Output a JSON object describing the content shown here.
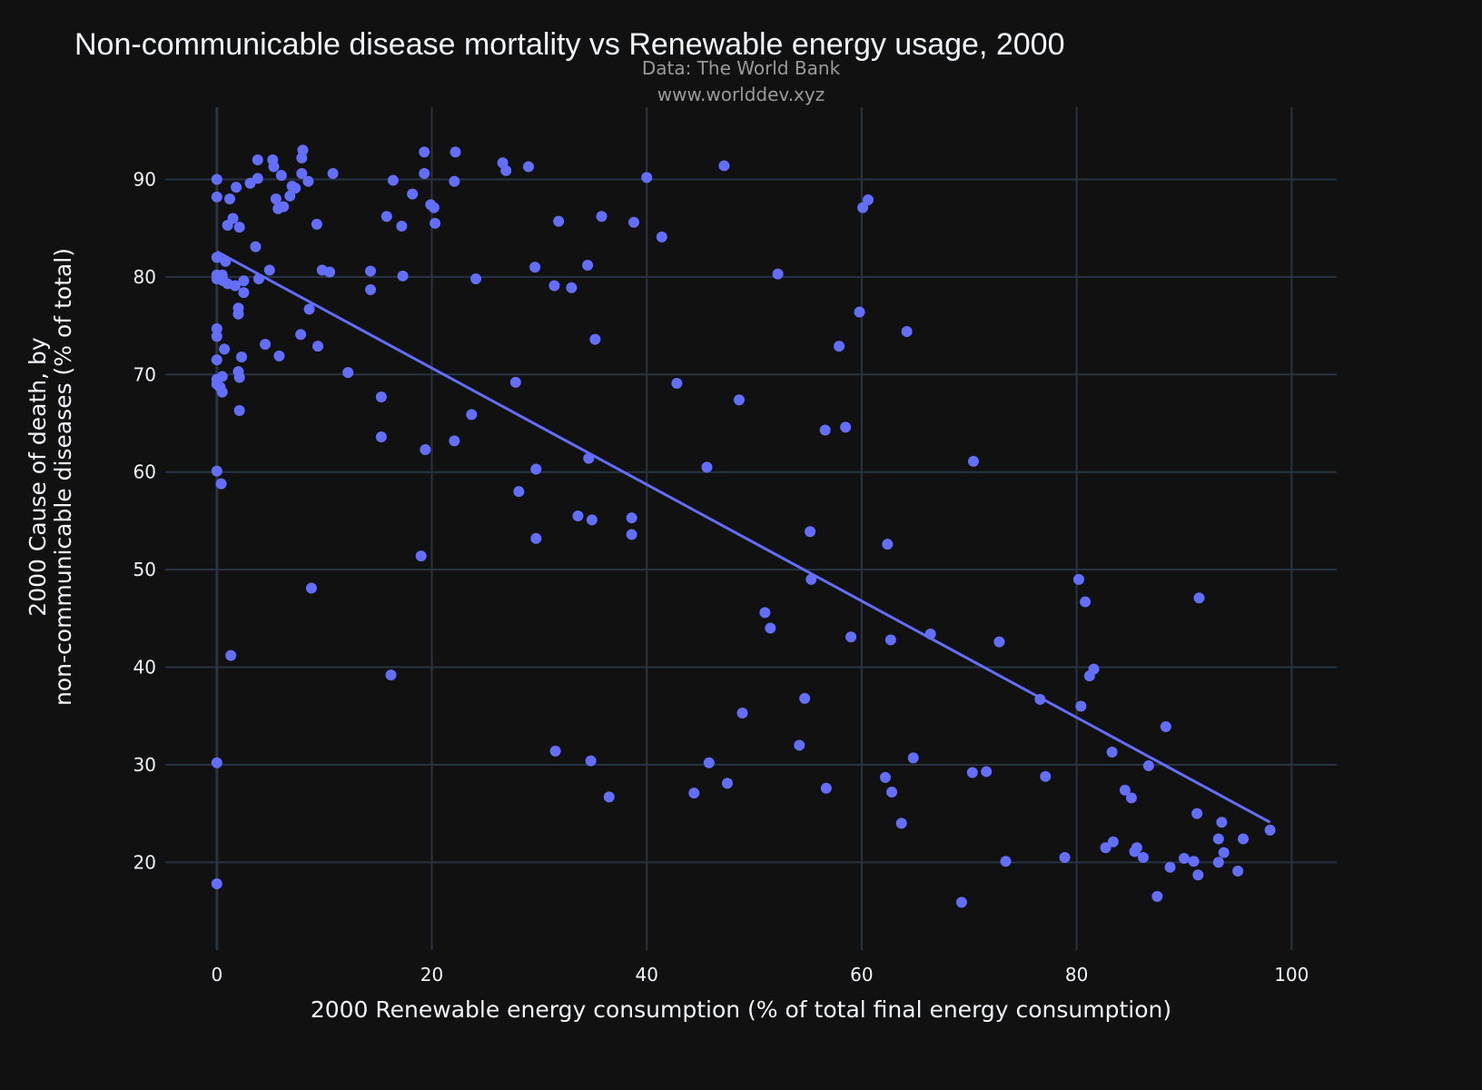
{
  "chart_data": {
    "type": "scatter",
    "title": "Non-communicable disease mortality vs Renewable energy usage, 2000",
    "subtitle_lines": [
      "Data: The World Bank",
      "www.worlddev.xyz"
    ],
    "xlabel": "2000 Renewable energy consumption (% of total final energy consumption)",
    "ylabel_lines": [
      "2000 Cause of death, by",
      "non-communicable diseases (% of total)"
    ],
    "xlim": [
      -4.8,
      104.2
    ],
    "ylim": [
      11.0,
      97.4
    ],
    "xticks": [
      0,
      20,
      40,
      60,
      80,
      100
    ],
    "yticks": [
      20,
      30,
      40,
      50,
      60,
      70,
      80,
      90
    ],
    "grid": true,
    "background_color": "#111111",
    "grid_color": "#283442",
    "marker_color": "#636efa",
    "trendline": {
      "x": [
        0,
        98.0
      ],
      "y": [
        82.6,
        24.1
      ]
    },
    "points": [
      [
        0,
        90.0
      ],
      [
        0,
        88.2
      ],
      [
        0,
        82.0
      ],
      [
        0,
        80.2
      ],
      [
        0,
        79.8
      ],
      [
        0,
        74.7
      ],
      [
        0,
        73.9
      ],
      [
        0,
        71.5
      ],
      [
        0,
        69.5
      ],
      [
        0,
        69.0
      ],
      [
        0,
        60.1
      ],
      [
        0,
        30.2
      ],
      [
        0,
        17.8
      ],
      [
        0.3,
        68.7
      ],
      [
        0.4,
        58.8
      ],
      [
        0.5,
        69.8
      ],
      [
        0.5,
        68.2
      ],
      [
        0.5,
        80.2
      ],
      [
        0.6,
        79.6
      ],
      [
        0.7,
        72.6
      ],
      [
        0.8,
        81.6
      ],
      [
        1.0,
        85.3
      ],
      [
        1.0,
        79.3
      ],
      [
        1.2,
        88.0
      ],
      [
        1.3,
        41.2
      ],
      [
        1.5,
        86.0
      ],
      [
        1.7,
        79.1
      ],
      [
        1.8,
        89.2
      ],
      [
        2.0,
        76.8
      ],
      [
        2.0,
        76.2
      ],
      [
        2.0,
        70.3
      ],
      [
        2.1,
        69.7
      ],
      [
        2.1,
        85.1
      ],
      [
        2.1,
        66.3
      ],
      [
        2.3,
        71.8
      ],
      [
        2.5,
        79.6
      ],
      [
        2.5,
        78.4
      ],
      [
        3.1,
        89.6
      ],
      [
        3.6,
        83.1
      ],
      [
        3.8,
        92.0
      ],
      [
        3.8,
        90.1
      ],
      [
        3.9,
        79.8
      ],
      [
        4.5,
        73.1
      ],
      [
        4.9,
        80.7
      ],
      [
        5.2,
        92.0
      ],
      [
        5.3,
        91.3
      ],
      [
        5.5,
        88.0
      ],
      [
        5.7,
        87.0
      ],
      [
        5.8,
        71.9
      ],
      [
        6.0,
        90.4
      ],
      [
        6.2,
        87.2
      ],
      [
        6.8,
        88.3
      ],
      [
        7.0,
        89.3
      ],
      [
        7.3,
        89.1
      ],
      [
        7.8,
        74.1
      ],
      [
        7.9,
        90.6
      ],
      [
        7.9,
        92.2
      ],
      [
        8.0,
        93.0
      ],
      [
        8.5,
        89.8
      ],
      [
        8.6,
        76.7
      ],
      [
        8.8,
        48.1
      ],
      [
        9.3,
        85.4
      ],
      [
        9.4,
        72.9
      ],
      [
        9.8,
        80.7
      ],
      [
        10.5,
        80.5
      ],
      [
        10.8,
        90.6
      ],
      [
        12.2,
        70.2
      ],
      [
        14.3,
        80.6
      ],
      [
        14.3,
        78.7
      ],
      [
        15.3,
        67.7
      ],
      [
        15.3,
        63.6
      ],
      [
        15.8,
        86.2
      ],
      [
        16.2,
        39.2
      ],
      [
        16.4,
        89.9
      ],
      [
        17.2,
        85.2
      ],
      [
        17.3,
        80.1
      ],
      [
        18.2,
        88.5
      ],
      [
        19.0,
        51.4
      ],
      [
        19.3,
        90.6
      ],
      [
        19.3,
        92.8
      ],
      [
        19.4,
        62.3
      ],
      [
        19.9,
        87.4
      ],
      [
        20.2,
        87.1
      ],
      [
        20.3,
        85.5
      ],
      [
        22.1,
        89.8
      ],
      [
        22.1,
        63.2
      ],
      [
        22.2,
        92.8
      ],
      [
        23.7,
        65.9
      ],
      [
        24.1,
        79.8
      ],
      [
        26.6,
        91.7
      ],
      [
        26.9,
        90.9
      ],
      [
        27.8,
        69.2
      ],
      [
        28.1,
        58.0
      ],
      [
        29.0,
        91.3
      ],
      [
        29.6,
        81.0
      ],
      [
        29.7,
        60.3
      ],
      [
        29.7,
        53.2
      ],
      [
        31.4,
        79.1
      ],
      [
        31.5,
        31.4
      ],
      [
        31.8,
        85.7
      ],
      [
        33.0,
        78.9
      ],
      [
        33.6,
        55.5
      ],
      [
        34.5,
        81.2
      ],
      [
        34.6,
        61.4
      ],
      [
        34.8,
        30.4
      ],
      [
        34.9,
        55.1
      ],
      [
        35.2,
        73.6
      ],
      [
        35.8,
        86.2
      ],
      [
        36.5,
        26.7
      ],
      [
        38.6,
        55.3
      ],
      [
        38.6,
        53.6
      ],
      [
        38.8,
        85.6
      ],
      [
        40.0,
        90.2
      ],
      [
        41.4,
        84.1
      ],
      [
        42.8,
        69.1
      ],
      [
        44.4,
        27.1
      ],
      [
        45.6,
        60.5
      ],
      [
        45.8,
        30.2
      ],
      [
        47.2,
        91.4
      ],
      [
        47.5,
        28.1
      ],
      [
        48.6,
        67.4
      ],
      [
        48.9,
        35.3
      ],
      [
        51.0,
        45.6
      ],
      [
        51.5,
        44.0
      ],
      [
        52.2,
        80.3
      ],
      [
        54.2,
        32.0
      ],
      [
        54.7,
        36.8
      ],
      [
        55.2,
        53.9
      ],
      [
        55.3,
        49.0
      ],
      [
        56.6,
        64.3
      ],
      [
        56.7,
        27.6
      ],
      [
        57.9,
        72.9
      ],
      [
        58.5,
        64.6
      ],
      [
        59.0,
        43.1
      ],
      [
        59.8,
        76.4
      ],
      [
        60.1,
        87.1
      ],
      [
        60.6,
        87.9
      ],
      [
        62.2,
        28.7
      ],
      [
        62.4,
        52.6
      ],
      [
        62.7,
        42.8
      ],
      [
        62.8,
        27.2
      ],
      [
        63.7,
        24.0
      ],
      [
        64.2,
        74.4
      ],
      [
        64.8,
        30.7
      ],
      [
        66.4,
        43.4
      ],
      [
        69.3,
        15.9
      ],
      [
        70.3,
        29.2
      ],
      [
        70.4,
        61.1
      ],
      [
        71.6,
        29.3
      ],
      [
        72.8,
        42.6
      ],
      [
        73.4,
        20.1
      ],
      [
        76.6,
        36.7
      ],
      [
        77.1,
        28.8
      ],
      [
        78.9,
        20.5
      ],
      [
        80.2,
        49.0
      ],
      [
        80.4,
        36.0
      ],
      [
        80.8,
        46.7
      ],
      [
        81.2,
        39.1
      ],
      [
        81.6,
        39.8
      ],
      [
        82.7,
        21.5
      ],
      [
        83.3,
        31.3
      ],
      [
        83.4,
        22.1
      ],
      [
        84.5,
        27.4
      ],
      [
        85.1,
        26.6
      ],
      [
        85.4,
        21.1
      ],
      [
        85.6,
        21.5
      ],
      [
        86.2,
        20.5
      ],
      [
        86.7,
        29.9
      ],
      [
        87.5,
        16.5
      ],
      [
        88.3,
        33.9
      ],
      [
        88.7,
        19.5
      ],
      [
        90.0,
        20.4
      ],
      [
        90.9,
        20.1
      ],
      [
        91.2,
        25.0
      ],
      [
        91.3,
        18.7
      ],
      [
        91.4,
        47.1
      ],
      [
        93.2,
        22.4
      ],
      [
        93.2,
        20.0
      ],
      [
        93.5,
        24.1
      ],
      [
        93.7,
        21.0
      ],
      [
        95.0,
        19.1
      ],
      [
        95.5,
        22.4
      ],
      [
        98.0,
        23.3
      ]
    ]
  }
}
